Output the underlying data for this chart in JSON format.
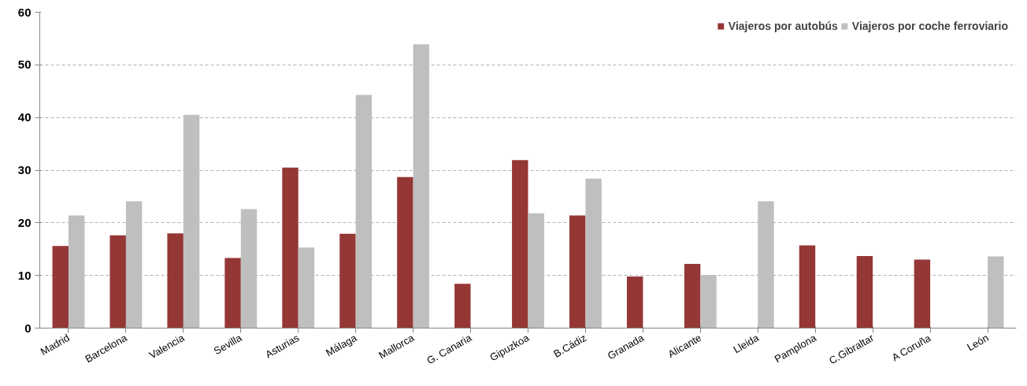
{
  "chart_data": {
    "type": "bar",
    "categories": [
      "Madrid",
      "Barcelona",
      "Valencia",
      "Sevilla",
      "Asturias",
      "Málaga",
      "Mallorca",
      "G. Canaria",
      "Gipuzkoa",
      "B.Cádiz",
      "Granada",
      "Alicante",
      "Lleida",
      "Pamplona",
      "C.Gibraltar",
      "A Coruña",
      "León"
    ],
    "series": [
      {
        "name": "Viajeros por autobús",
        "color": "#953735",
        "values": [
          15.6,
          17.6,
          18.0,
          13.3,
          30.5,
          17.9,
          28.7,
          8.4,
          31.9,
          21.4,
          9.8,
          12.2,
          null,
          15.7,
          13.7,
          13.0,
          null
        ]
      },
      {
        "name": "Viajeros por coche ferroviario",
        "color": "#bfbfbf",
        "values": [
          21.4,
          24.1,
          40.5,
          22.6,
          15.3,
          44.3,
          53.9,
          null,
          21.8,
          28.4,
          null,
          10.1,
          24.1,
          null,
          null,
          null,
          13.6
        ]
      }
    ],
    "ylim": [
      0,
      60
    ],
    "yticks": [
      0,
      10,
      20,
      30,
      40,
      50,
      60
    ],
    "grid": "y",
    "legend": "top right"
  }
}
